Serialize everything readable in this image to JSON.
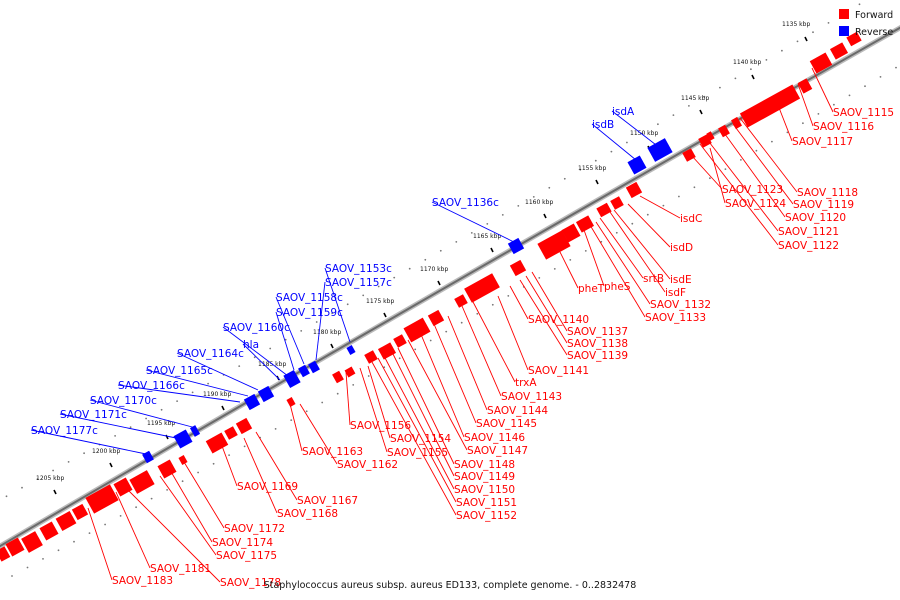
{
  "legend": {
    "items": [
      {
        "label": "Forward",
        "color": "#ff0000"
      },
      {
        "label": "Reverse",
        "color": "#0000ff"
      }
    ]
  },
  "caption": "Staphylococcus aureus subsp. aureus ED133, complete genome. - 0..2832478",
  "colors": {
    "forward": "#ff0000",
    "reverse": "#0000ff",
    "backbone": "#808080"
  },
  "ticks": [
    {
      "label": "1135 kbp",
      "kbp": 1135
    },
    {
      "label": "1140 kbp",
      "kbp": 1140
    },
    {
      "label": "1145 kbp",
      "kbp": 1145
    },
    {
      "label": "1150 kbp",
      "kbp": 1150
    },
    {
      "label": "1155 kbp",
      "kbp": 1155
    },
    {
      "label": "1160 kbp",
      "kbp": 1160
    },
    {
      "label": "1165 kbp",
      "kbp": 1165
    },
    {
      "label": "1170 kbp",
      "kbp": 1170
    },
    {
      "label": "1175 kbp",
      "kbp": 1175
    },
    {
      "label": "1180 kbp",
      "kbp": 1180
    },
    {
      "label": "1185 kbp",
      "kbp": 1185
    },
    {
      "label": "1190 kbp",
      "kbp": 1190
    },
    {
      "label": "1195 kbp",
      "kbp": 1195
    },
    {
      "label": "1200 kbp",
      "kbp": 1200
    },
    {
      "label": "1205 kbp",
      "kbp": 1205
    }
  ],
  "genes": [
    {
      "label": "SAOV_1115",
      "strand": "forward"
    },
    {
      "label": "SAOV_1116",
      "strand": "forward"
    },
    {
      "label": "SAOV_1117",
      "strand": "forward"
    },
    {
      "label": "SAOV_1118",
      "strand": "forward"
    },
    {
      "label": "SAOV_1119",
      "strand": "forward"
    },
    {
      "label": "SAOV_1120",
      "strand": "forward"
    },
    {
      "label": "SAOV_1121",
      "strand": "forward"
    },
    {
      "label": "SAOV_1122",
      "strand": "forward"
    },
    {
      "label": "SAOV_1123",
      "strand": "forward"
    },
    {
      "label": "SAOV_1124",
      "strand": "forward"
    },
    {
      "label": "isdA",
      "strand": "reverse"
    },
    {
      "label": "isdB",
      "strand": "reverse"
    },
    {
      "label": "isdC",
      "strand": "forward"
    },
    {
      "label": "isdD",
      "strand": "forward"
    },
    {
      "label": "isdE",
      "strand": "forward"
    },
    {
      "label": "isdF",
      "strand": "forward"
    },
    {
      "label": "srtB",
      "strand": "forward"
    },
    {
      "label": "SAOV_1132",
      "strand": "forward"
    },
    {
      "label": "SAOV_1133",
      "strand": "forward"
    },
    {
      "label": "pheS",
      "strand": "forward"
    },
    {
      "label": "pheT",
      "strand": "forward"
    },
    {
      "label": "SAOV_1136c",
      "strand": "reverse"
    },
    {
      "label": "SAOV_1137",
      "strand": "forward"
    },
    {
      "label": "SAOV_1138",
      "strand": "forward"
    },
    {
      "label": "SAOV_1139",
      "strand": "forward"
    },
    {
      "label": "SAOV_1140",
      "strand": "forward"
    },
    {
      "label": "SAOV_1141",
      "strand": "forward"
    },
    {
      "label": "trxA",
      "strand": "forward"
    },
    {
      "label": "SAOV_1143",
      "strand": "forward"
    },
    {
      "label": "SAOV_1144",
      "strand": "forward"
    },
    {
      "label": "SAOV_1145",
      "strand": "forward"
    },
    {
      "label": "SAOV_1146",
      "strand": "forward"
    },
    {
      "label": "SAOV_1147",
      "strand": "forward"
    },
    {
      "label": "SAOV_1148",
      "strand": "forward"
    },
    {
      "label": "SAOV_1149",
      "strand": "forward"
    },
    {
      "label": "SAOV_1150",
      "strand": "forward"
    },
    {
      "label": "SAOV_1151",
      "strand": "forward"
    },
    {
      "label": "SAOV_1152",
      "strand": "forward"
    },
    {
      "label": "SAOV_1153c",
      "strand": "reverse"
    },
    {
      "label": "SAOV_1154",
      "strand": "forward"
    },
    {
      "label": "SAOV_1155",
      "strand": "forward"
    },
    {
      "label": "SAOV_1156",
      "strand": "forward"
    },
    {
      "label": "SAOV_1157c",
      "strand": "reverse"
    },
    {
      "label": "SAOV_1158c",
      "strand": "reverse"
    },
    {
      "label": "SAOV_1159c",
      "strand": "reverse"
    },
    {
      "label": "SAOV_1160c",
      "strand": "reverse"
    },
    {
      "label": "hla",
      "strand": "reverse"
    },
    {
      "label": "SAOV_1162",
      "strand": "forward"
    },
    {
      "label": "SAOV_1163",
      "strand": "forward"
    },
    {
      "label": "SAOV_1164c",
      "strand": "reverse"
    },
    {
      "label": "SAOV_1165c",
      "strand": "reverse"
    },
    {
      "label": "SAOV_1166c",
      "strand": "reverse"
    },
    {
      "label": "SAOV_1167",
      "strand": "forward"
    },
    {
      "label": "SAOV_1168",
      "strand": "forward"
    },
    {
      "label": "SAOV_1169",
      "strand": "forward"
    },
    {
      "label": "SAOV_1170c",
      "strand": "reverse"
    },
    {
      "label": "SAOV_1171c",
      "strand": "reverse"
    },
    {
      "label": "SAOV_1172",
      "strand": "forward"
    },
    {
      "label": "SAOV_1174",
      "strand": "forward"
    },
    {
      "label": "SAOV_1175",
      "strand": "forward"
    },
    {
      "label": "SAOV_1177c",
      "strand": "reverse"
    },
    {
      "label": "SAOV_1178",
      "strand": "forward"
    },
    {
      "label": "SAOV_1181",
      "strand": "forward"
    },
    {
      "label": "SAOV_1183",
      "strand": "forward"
    }
  ]
}
